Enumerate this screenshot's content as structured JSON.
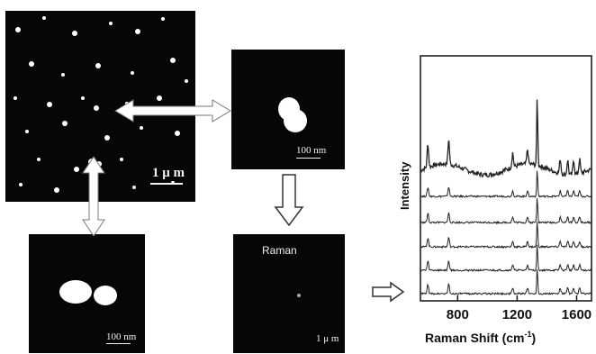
{
  "panels": {
    "afm_overview": {
      "scale_label": "1 μ m"
    },
    "afm_zoom_top": {
      "scale_label": "100 nm"
    },
    "afm_zoom_bottom": {
      "scale_label": "100 nm"
    },
    "raman_map": {
      "title": "Raman",
      "scale_label": "1 μ m"
    }
  },
  "chart_data": {
    "type": "line",
    "title": "",
    "xlabel": "Raman Shift (cm",
    "xlabel_sup": "-1",
    "xlabel_close": ")",
    "ylabel": "Intensity",
    "xlim": [
      550,
      1700
    ],
    "xticks": [
      800,
      1200,
      1600
    ],
    "xtick_labels": [
      "800",
      "1200",
      "1600"
    ],
    "stacked_spectra_count": 6,
    "peak_positions": [
      600,
      740,
      1170,
      1270,
      1335,
      1490,
      1540,
      1580,
      1620
    ],
    "notes": "Stacked Raman spectra, intensity in arbitrary units (no y tick labels)"
  }
}
